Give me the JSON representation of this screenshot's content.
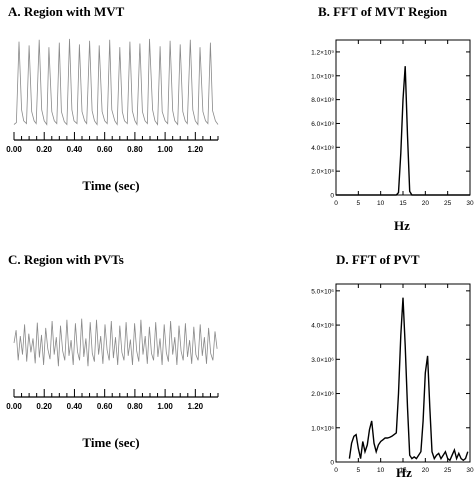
{
  "chart_data": [
    {
      "type": "line",
      "title": "A.  Region with MVT",
      "xlabel": "Time (sec)",
      "ylabel": "",
      "xlim": [
        0,
        1.35
      ],
      "x_tick_labels": [
        "0.00",
        "0.20",
        "0.40",
        "0.60",
        "0.80",
        "1.00",
        "1.20"
      ],
      "series": [
        {
          "x": [
            0.0,
            0.016,
            0.033,
            0.05,
            0.064,
            0.083,
            0.1,
            0.117,
            0.133,
            0.147,
            0.167,
            0.183,
            0.2,
            0.217,
            0.231,
            0.25,
            0.267,
            0.283,
            0.3,
            0.314,
            0.333,
            0.35,
            0.367,
            0.383,
            0.397,
            0.417,
            0.433,
            0.45,
            0.467,
            0.481,
            0.5,
            0.517,
            0.533,
            0.55,
            0.564,
            0.583,
            0.6,
            0.617,
            0.633,
            0.647,
            0.667,
            0.683,
            0.7,
            0.717,
            0.731,
            0.75,
            0.767,
            0.783,
            0.8,
            0.814,
            0.833,
            0.85,
            0.867,
            0.883,
            0.897,
            0.917,
            0.933,
            0.95,
            0.967,
            0.981,
            1.0,
            1.017,
            1.033,
            1.05,
            1.064,
            1.083,
            1.1,
            1.117,
            1.133,
            1.147,
            1.167,
            1.183,
            1.2,
            1.217,
            1.231,
            1.25,
            1.267,
            1.283,
            1.3,
            1.314,
            1.333,
            1.35
          ],
          "y": [
            0.06,
            0.08,
            0.96,
            0.22,
            0.1,
            0.07,
            0.92,
            0.2,
            0.1,
            0.07,
            0.98,
            0.22,
            0.1,
            0.06,
            0.9,
            0.2,
            0.1,
            0.07,
            0.95,
            0.2,
            0.09,
            0.06,
            0.99,
            0.22,
            0.1,
            0.07,
            0.93,
            0.2,
            0.1,
            0.07,
            0.97,
            0.21,
            0.1,
            0.06,
            0.92,
            0.2,
            0.1,
            0.07,
            0.98,
            0.22,
            0.1,
            0.06,
            0.9,
            0.2,
            0.1,
            0.07,
            0.96,
            0.21,
            0.1,
            0.06,
            0.94,
            0.2,
            0.1,
            0.07,
            0.99,
            0.22,
            0.1,
            0.06,
            0.91,
            0.2,
            0.1,
            0.07,
            0.97,
            0.21,
            0.1,
            0.06,
            0.93,
            0.2,
            0.1,
            0.07,
            0.98,
            0.22,
            0.1,
            0.06,
            0.9,
            0.2,
            0.1,
            0.07,
            0.95,
            0.21,
            0.1,
            0.06
          ]
        }
      ]
    },
    {
      "type": "line",
      "title": "B.  FFT of MVT Region",
      "xlabel": "Hz",
      "ylabel": "",
      "xlim": [
        0,
        30
      ],
      "ylim": [
        0,
        1300000000.0
      ],
      "x_tick_labels": [
        "0",
        "5",
        "10",
        "15",
        "20",
        "25",
        "30"
      ],
      "y_tick_labels": [
        "0",
        "2.0×10⁸",
        "4.0×10⁸",
        "6.0×10⁸",
        "8.0×10⁸",
        "1.0×10⁹",
        "1.2×10⁹"
      ],
      "series": [
        {
          "x": [
            0,
            13.5,
            14.0,
            14.5,
            15.0,
            15.5,
            16.0,
            16.5,
            17.0,
            30
          ],
          "y": [
            0,
            0,
            20000000.0,
            350000000.0,
            800000000.0,
            1080000000.0,
            500000000.0,
            30000000.0,
            0,
            0
          ]
        }
      ]
    },
    {
      "type": "line",
      "title": "C.  Region with PVTs",
      "xlabel": "Time (sec)",
      "ylabel": "",
      "xlim": [
        0,
        1.35
      ],
      "x_tick_labels": [
        "0.00",
        "0.20",
        "0.40",
        "0.60",
        "0.80",
        "1.00",
        "1.20"
      ],
      "series": [
        {
          "x": [
            0.0,
            0.014,
            0.028,
            0.042,
            0.056,
            0.07,
            0.084,
            0.098,
            0.112,
            0.126,
            0.14,
            0.154,
            0.168,
            0.182,
            0.196,
            0.21,
            0.224,
            0.238,
            0.252,
            0.266,
            0.28,
            0.294,
            0.308,
            0.322,
            0.336,
            0.35,
            0.364,
            0.378,
            0.392,
            0.406,
            0.42,
            0.434,
            0.448,
            0.462,
            0.476,
            0.49,
            0.504,
            0.518,
            0.532,
            0.546,
            0.56,
            0.574,
            0.588,
            0.602,
            0.616,
            0.63,
            0.644,
            0.658,
            0.672,
            0.686,
            0.7,
            0.714,
            0.728,
            0.742,
            0.756,
            0.77,
            0.784,
            0.798,
            0.812,
            0.826,
            0.84,
            0.854,
            0.868,
            0.882,
            0.896,
            0.91,
            0.924,
            0.938,
            0.952,
            0.966,
            0.98,
            0.994,
            1.008,
            1.022,
            1.036,
            1.05,
            1.064,
            1.078,
            1.092,
            1.106,
            1.12,
            1.134,
            1.148,
            1.162,
            1.176,
            1.19,
            1.204,
            1.218,
            1.232,
            1.246,
            1.26,
            1.274,
            1.288,
            1.302,
            1.316,
            1.33,
            1.344
          ],
          "y": [
            0.5,
            0.72,
            0.2,
            0.62,
            0.3,
            0.82,
            0.18,
            0.66,
            0.34,
            0.58,
            0.15,
            0.85,
            0.25,
            0.64,
            0.12,
            0.76,
            0.4,
            0.22,
            0.88,
            0.3,
            0.6,
            0.1,
            0.8,
            0.36,
            0.2,
            0.9,
            0.28,
            0.55,
            0.12,
            0.84,
            0.35,
            0.2,
            0.92,
            0.26,
            0.58,
            0.1,
            0.86,
            0.32,
            0.18,
            0.9,
            0.3,
            0.62,
            0.14,
            0.82,
            0.38,
            0.2,
            0.88,
            0.24,
            0.6,
            0.12,
            0.8,
            0.34,
            0.2,
            0.86,
            0.28,
            0.56,
            0.12,
            0.84,
            0.36,
            0.18,
            0.9,
            0.3,
            0.62,
            0.14,
            0.78,
            0.32,
            0.2,
            0.86,
            0.26,
            0.58,
            0.12,
            0.82,
            0.34,
            0.18,
            0.88,
            0.3,
            0.6,
            0.12,
            0.8,
            0.36,
            0.2,
            0.84,
            0.26,
            0.55,
            0.14,
            0.78,
            0.3,
            0.2,
            0.82,
            0.28,
            0.6,
            0.14,
            0.76,
            0.32,
            0.2,
            0.7,
            0.4
          ]
        }
      ]
    },
    {
      "type": "line",
      "title": "D.  FFT of PVT",
      "xlabel": "Hz",
      "ylabel": "",
      "xlim": [
        0,
        30
      ],
      "ylim": [
        0,
        5200000.0
      ],
      "x_tick_labels": [
        "0",
        "5",
        "10",
        "15",
        "20",
        "25",
        "30"
      ],
      "y_tick_labels": [
        "0",
        "1.0×10⁶",
        "2.0×10⁶",
        "3.0×10⁶",
        "4.0×10⁶",
        "5.0×10⁶"
      ],
      "series": [
        {
          "x": [
            3.0,
            3.5,
            4.0,
            4.5,
            5.0,
            5.5,
            6.0,
            6.5,
            7.0,
            7.5,
            8.0,
            8.5,
            9.0,
            9.5,
            10.0,
            10.5,
            11.0,
            11.5,
            12.0,
            12.5,
            13.0,
            13.5,
            14.0,
            14.5,
            15.0,
            15.5,
            16.0,
            16.5,
            17.0,
            17.5,
            18.0,
            18.5,
            19.0,
            19.5,
            20.0,
            20.5,
            21.0,
            21.5,
            22.0,
            22.5,
            23.0,
            23.5,
            24.0,
            24.5,
            25.0,
            25.5,
            26.0,
            26.5,
            27.0,
            27.5,
            28.0,
            28.5,
            29.0,
            29.5
          ],
          "y": [
            100000.0,
            550000.0,
            750000.0,
            800000.0,
            400000.0,
            100000.0,
            600000.0,
            300000.0,
            500000.0,
            950000.0,
            1200000.0,
            550000.0,
            300000.0,
            500000.0,
            600000.0,
            650000.0,
            700000.0,
            700000.0,
            720000.0,
            750000.0,
            800000.0,
            850000.0,
            2000000.0,
            3700000.0,
            4800000.0,
            3400000.0,
            1600000.0,
            200000.0,
            100000.0,
            150000.0,
            100000.0,
            200000.0,
            300000.0,
            1200000.0,
            2600000.0,
            3100000.0,
            1600000.0,
            300000.0,
            100000.0,
            200000.0,
            250000.0,
            100000.0,
            200000.0,
            300000.0,
            100000.0,
            50000.0,
            200000.0,
            350000.0,
            100000.0,
            250000.0,
            100000.0,
            50000.0,
            100000.0,
            300000.0
          ]
        }
      ]
    }
  ]
}
